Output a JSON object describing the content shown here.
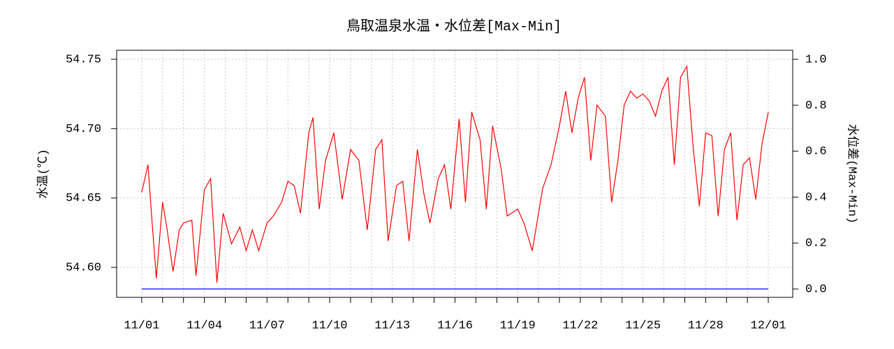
{
  "chart_data": {
    "type": "line",
    "title": "鳥取温泉水温・水位差[Max-Min]",
    "ylabel": "水温(℃)",
    "y2label": "水位差(Max-Min)",
    "xlim": [
      -1.2,
      31.17
    ],
    "xticks": [
      {
        "value": 0,
        "label": "11/01"
      },
      {
        "value": 3,
        "label": "11/04"
      },
      {
        "value": 6,
        "label": "11/07"
      },
      {
        "value": 9,
        "label": "11/10"
      },
      {
        "value": 12,
        "label": "11/13"
      },
      {
        "value": 15,
        "label": "11/16"
      },
      {
        "value": 18,
        "label": "11/19"
      },
      {
        "value": 21,
        "label": "11/22"
      },
      {
        "value": 24,
        "label": "11/25"
      },
      {
        "value": 27,
        "label": "11/28"
      },
      {
        "value": 30,
        "label": "12/01"
      }
    ],
    "xminor_ticks": [
      1,
      2,
      4,
      5,
      7,
      8,
      10,
      11,
      13,
      14,
      16,
      17,
      19,
      20,
      22,
      23,
      25,
      26,
      28,
      29
    ],
    "ylim": [
      54.5784,
      54.7565
    ],
    "yticks": [
      {
        "value": 54.6,
        "label": "54.60"
      },
      54.65,
      {
        "value": 54.7,
        "label": "54.70"
      },
      54.75
    ],
    "y2lim": [
      -0.0365,
      1.0395
    ],
    "y2ticks": [
      {
        "value": 0,
        "label": "0.0"
      },
      0.2,
      0.4,
      0.6,
      0.8,
      {
        "value": 1,
        "label": "1.0"
      }
    ],
    "grid": true,
    "series": [
      {
        "name": "水温",
        "color": "#ff0000",
        "x": [
          0,
          0.3,
          0.5,
          0.7,
          1,
          1.2,
          1.5,
          1.8,
          2,
          2.4,
          2.6,
          3,
          3.3,
          3.6,
          3.9,
          4.3,
          4.7,
          5,
          5.3,
          5.6,
          6,
          6.3,
          6.7,
          7,
          7.3,
          7.6,
          8,
          8.2,
          8.5,
          8.8,
          9.2,
          9.6,
          10,
          10.4,
          10.8,
          11.2,
          11.5,
          11.8,
          12.2,
          12.5,
          12.8,
          13.2,
          13.5,
          13.8,
          14.2,
          14.5,
          14.8,
          15.2,
          15.5,
          15.8,
          16.2,
          16.5,
          16.8,
          17.2,
          17.5,
          18,
          18.3,
          18.7,
          19.2,
          19.6,
          20,
          20.3,
          20.6,
          20.9,
          21.2,
          21.5,
          21.8,
          22.2,
          22.5,
          22.8,
          23.1,
          23.4,
          23.7,
          24,
          24.3,
          24.6,
          24.9,
          25.2,
          25.5,
          25.8,
          26.1,
          26.4,
          26.7,
          27,
          27.3,
          27.6,
          27.9,
          28.2,
          28.5,
          28.8,
          29.1,
          29.4,
          29.7,
          30
        ],
        "values": [
          54.654,
          54.674,
          54.632,
          54.592,
          54.647,
          54.629,
          54.597,
          54.627,
          54.632,
          54.634,
          54.594,
          54.656,
          54.664,
          54.589,
          54.639,
          54.617,
          54.629,
          54.612,
          54.627,
          54.612,
          54.632,
          54.637,
          54.647,
          54.662,
          54.659,
          54.639,
          54.697,
          54.708,
          54.642,
          54.677,
          54.697,
          54.649,
          54.685,
          54.677,
          54.627,
          54.685,
          54.692,
          54.619,
          54.659,
          54.662,
          54.619,
          54.685,
          54.654,
          54.632,
          54.664,
          54.674,
          54.642,
          54.707,
          54.647,
          54.712,
          54.692,
          54.642,
          54.702,
          54.672,
          54.637,
          54.642,
          54.632,
          54.612,
          54.657,
          54.674,
          54.702,
          54.727,
          54.697,
          54.722,
          54.737,
          54.677,
          54.717,
          54.709,
          54.647,
          54.677,
          54.717,
          54.727,
          54.722,
          54.725,
          54.72,
          54.709,
          54.727,
          54.737,
          54.674,
          54.737,
          54.745,
          54.687,
          54.644,
          54.697,
          54.695,
          54.637,
          54.685,
          54.697,
          54.634,
          54.674,
          54.679,
          54.649,
          54.689,
          54.712
        ]
      },
      {
        "name": "水位差",
        "color": "#0000ff",
        "axis": "y2",
        "x": [
          0,
          30
        ],
        "values": [
          0,
          0
        ]
      }
    ]
  }
}
